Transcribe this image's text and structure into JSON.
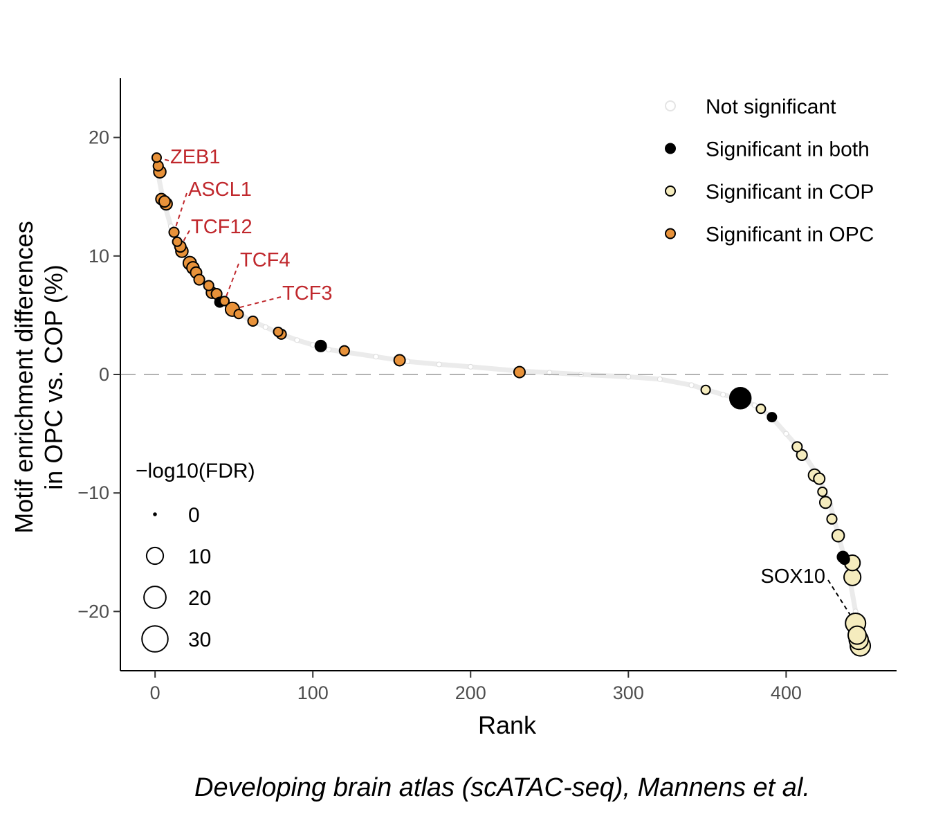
{
  "chart_data": {
    "type": "scatter",
    "caption": "Developing brain atlas (scATAC-seq), Mannens et al.",
    "xlabel": "Rank",
    "ylabel_line1": "Motif enrichment differences",
    "ylabel_line2": "in OPC vs. COP (%)",
    "xlim": [
      -22,
      470
    ],
    "ylim": [
      -25,
      25
    ],
    "x_ticks": [
      0,
      100,
      200,
      300,
      400
    ],
    "x_tick_labels": [
      "0",
      "100",
      "200",
      "300",
      "400"
    ],
    "y_ticks": [
      20,
      10,
      0,
      -10,
      -20
    ],
    "y_tick_labels": [
      "20",
      "10",
      "0",
      "−10",
      "−20"
    ],
    "reference_line_y": 0,
    "grid": false,
    "colors": {
      "not_significant": "#ebebeb",
      "both": "#000000",
      "cop": "#f5ecbe",
      "opc": "#e8923a",
      "label_opc": "#c0282d",
      "label_cop": "#000000",
      "refline": "#b3b3b3"
    },
    "legend_color": {
      "placement": "top-right",
      "items": [
        {
          "label": "Not significant",
          "group": "not_significant"
        },
        {
          "label": "Significant in both",
          "group": "both"
        },
        {
          "label": "Significant in COP",
          "group": "cop"
        },
        {
          "label": "Significant in OPC",
          "group": "opc"
        }
      ]
    },
    "legend_size": {
      "placement": "bottom-left",
      "title": "−log10(FDR)",
      "items": [
        {
          "label": "0",
          "value": 0
        },
        {
          "label": "10",
          "value": 10
        },
        {
          "label": "20",
          "value": 20
        },
        {
          "label": "30",
          "value": 30
        }
      ]
    },
    "background_curve": [
      [
        0,
        18.2
      ],
      [
        5,
        14.8
      ],
      [
        10,
        12.5
      ],
      [
        15,
        11
      ],
      [
        20,
        10
      ],
      [
        25,
        9
      ],
      [
        30,
        8
      ],
      [
        35,
        7
      ],
      [
        40,
        6.3
      ],
      [
        45,
        5.9
      ],
      [
        50,
        5.4
      ],
      [
        60,
        4.6
      ],
      [
        70,
        4
      ],
      [
        80,
        3.4
      ],
      [
        90,
        2.9
      ],
      [
        100,
        2.5
      ],
      [
        110,
        2.1
      ],
      [
        120,
        1.9
      ],
      [
        140,
        1.5
      ],
      [
        160,
        1.1
      ],
      [
        180,
        0.85
      ],
      [
        200,
        0.65
      ],
      [
        230,
        0.3
      ],
      [
        250,
        0.15
      ],
      [
        270,
        0
      ],
      [
        300,
        -0.2
      ],
      [
        320,
        -0.4
      ],
      [
        340,
        -0.9
      ],
      [
        350,
        -1.3
      ],
      [
        360,
        -1.7
      ],
      [
        372,
        -2.1
      ],
      [
        380,
        -2.6
      ],
      [
        390,
        -3.5
      ],
      [
        400,
        -5
      ],
      [
        410,
        -6.5
      ],
      [
        420,
        -8.5
      ],
      [
        428,
        -11
      ],
      [
        434,
        -14
      ],
      [
        440,
        -17
      ],
      [
        444,
        -20
      ],
      [
        446,
        -22
      ],
      [
        448,
        -22.9
      ]
    ],
    "points": [
      {
        "x": 1,
        "y": 18.3,
        "fdr": 1.5,
        "group": "opc"
      },
      {
        "x": 2,
        "y": 17.6,
        "fdr": 2,
        "group": "opc"
      },
      {
        "x": 3,
        "y": 17.1,
        "fdr": 4,
        "group": "opc"
      },
      {
        "x": 4,
        "y": 14.8,
        "fdr": 3,
        "group": "opc"
      },
      {
        "x": 6,
        "y": 14.6,
        "fdr": 3,
        "group": "opc"
      },
      {
        "x": 7,
        "y": 14.4,
        "fdr": 4,
        "group": "opc"
      },
      {
        "x": 12,
        "y": 12.0,
        "fdr": 2,
        "group": "opc"
      },
      {
        "x": 14,
        "y": 11.2,
        "fdr": 1.5,
        "group": "opc"
      },
      {
        "x": 16,
        "y": 10.8,
        "fdr": 3,
        "group": "opc"
      },
      {
        "x": 17,
        "y": 10.4,
        "fdr": 4,
        "group": "opc"
      },
      {
        "x": 22,
        "y": 9.4,
        "fdr": 5,
        "group": "opc"
      },
      {
        "x": 24,
        "y": 9.0,
        "fdr": 4,
        "group": "opc"
      },
      {
        "x": 26,
        "y": 8.6,
        "fdr": 3,
        "group": "opc"
      },
      {
        "x": 28,
        "y": 8.0,
        "fdr": 2.5,
        "group": "opc"
      },
      {
        "x": 34,
        "y": 7.5,
        "fdr": 2,
        "group": "opc"
      },
      {
        "x": 36,
        "y": 6.9,
        "fdr": 3,
        "group": "opc"
      },
      {
        "x": 39,
        "y": 6.8,
        "fdr": 2.5,
        "group": "opc"
      },
      {
        "x": 41,
        "y": 6.1,
        "fdr": 2,
        "group": "both"
      },
      {
        "x": 44,
        "y": 6.2,
        "fdr": 1.5,
        "group": "opc"
      },
      {
        "x": 49,
        "y": 5.5,
        "fdr": 6,
        "group": "opc"
      },
      {
        "x": 53,
        "y": 5.1,
        "fdr": 1.5,
        "group": "opc"
      },
      {
        "x": 62,
        "y": 4.5,
        "fdr": 2,
        "group": "opc"
      },
      {
        "x": 78,
        "y": 3.6,
        "fdr": 1.5,
        "group": "opc"
      },
      {
        "x": 80,
        "y": 3.4,
        "fdr": 2,
        "group": "opc"
      },
      {
        "x": 105,
        "y": 2.4,
        "fdr": 3,
        "group": "both"
      },
      {
        "x": 120,
        "y": 2.0,
        "fdr": 2,
        "group": "opc"
      },
      {
        "x": 155,
        "y": 1.2,
        "fdr": 3,
        "group": "opc"
      },
      {
        "x": 231,
        "y": 0.2,
        "fdr": 3,
        "group": "opc"
      },
      {
        "x": 349,
        "y": -1.3,
        "fdr": 1.5,
        "group": "cop"
      },
      {
        "x": 371,
        "y": -2.0,
        "fdr": 18,
        "group": "both"
      },
      {
        "x": 384,
        "y": -2.9,
        "fdr": 1.5,
        "group": "cop"
      },
      {
        "x": 391,
        "y": -3.6,
        "fdr": 1.5,
        "group": "both"
      },
      {
        "x": 407,
        "y": -6.1,
        "fdr": 2,
        "group": "cop"
      },
      {
        "x": 410,
        "y": -6.8,
        "fdr": 2.5,
        "group": "cop"
      },
      {
        "x": 418,
        "y": -8.5,
        "fdr": 4,
        "group": "cop"
      },
      {
        "x": 421,
        "y": -8.8,
        "fdr": 3,
        "group": "cop"
      },
      {
        "x": 423,
        "y": -9.9,
        "fdr": 1.5,
        "group": "cop"
      },
      {
        "x": 425,
        "y": -10.8,
        "fdr": 3.5,
        "group": "cop"
      },
      {
        "x": 429,
        "y": -12.2,
        "fdr": 2,
        "group": "cop"
      },
      {
        "x": 433,
        "y": -13.6,
        "fdr": 4,
        "group": "cop"
      },
      {
        "x": 436,
        "y": -15.4,
        "fdr": 3,
        "group": "both"
      },
      {
        "x": 437,
        "y": -15.6,
        "fdr": 2,
        "group": "both"
      },
      {
        "x": 442,
        "y": -15.9,
        "fdr": 8,
        "group": "cop"
      },
      {
        "x": 442,
        "y": -17.1,
        "fdr": 10,
        "group": "cop"
      },
      {
        "x": 444,
        "y": -21.0,
        "fdr": 16,
        "group": "cop"
      },
      {
        "x": 445,
        "y": -22.0,
        "fdr": 12,
        "group": "cop"
      },
      {
        "x": 446,
        "y": -22.4,
        "fdr": 14,
        "group": "cop"
      },
      {
        "x": 447,
        "y": -22.9,
        "fdr": 16,
        "group": "cop"
      }
    ],
    "annotations": [
      {
        "text": "ZEB1",
        "group": "opc",
        "x": 1,
        "y": 18.3
      },
      {
        "text": "ASCL1",
        "group": "opc",
        "x": 12,
        "y": 12.0
      },
      {
        "text": "TCF12",
        "group": "opc",
        "x": 16,
        "y": 10.8
      },
      {
        "text": "TCF4",
        "group": "opc",
        "x": 44,
        "y": 6.2
      },
      {
        "text": "TCF3",
        "group": "opc",
        "x": 49,
        "y": 5.5
      },
      {
        "text": "SOX10",
        "group": "cop",
        "x": 444,
        "y": -21.0
      }
    ]
  }
}
